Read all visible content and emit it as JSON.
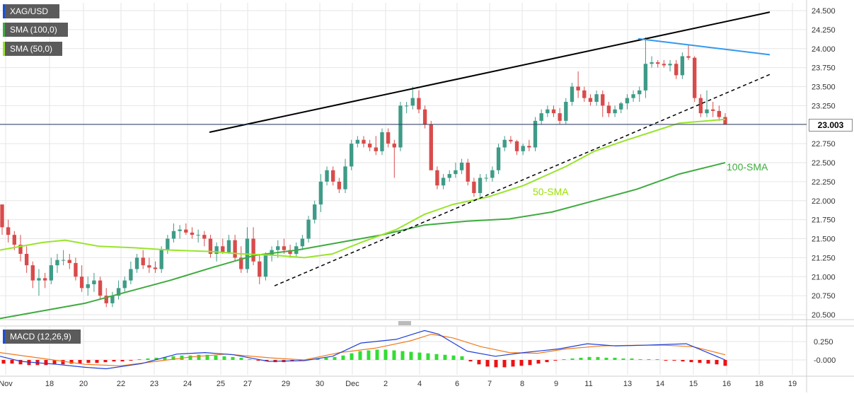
{
  "instrument": "XAG/USD",
  "legend": {
    "main": "XAG/USD",
    "sma100": "SMA (100,0)",
    "sma50": "SMA (50,0)",
    "macd": "MACD (12,26,9)"
  },
  "colors": {
    "background": "#ffffff",
    "grid": "#e6e6e6",
    "up": "#3e9b87",
    "down": "#d94b4b",
    "sma50": "#99e42b",
    "sma100": "#3fab3f",
    "resistance": "#000000",
    "blue_trendline": "#3399ee",
    "macd_line": "#1f3fd8",
    "signal_line": "#f07a1a",
    "hist_pos": "#33dd33",
    "hist_neg": "#ee1111"
  },
  "annotations": {
    "sma100": "100-SMA",
    "sma50": "50-SMA"
  },
  "current_price": "23.003",
  "chart_data": [
    {
      "type": "candlestick",
      "price_axis": {
        "ticks": [
          "24.500",
          "24.250",
          "24.000",
          "23.750",
          "23.500",
          "23.250",
          "23.000",
          "22.750",
          "22.500",
          "22.250",
          "22.000",
          "21.750",
          "21.500",
          "21.250",
          "21.000",
          "20.750",
          "20.500"
        ],
        "range": [
          20.45,
          24.55
        ]
      },
      "x_axis": {
        "labels": [
          "Nov",
          "18",
          "20",
          "22",
          "23",
          "24",
          "25",
          "27",
          "29",
          "30",
          "Dec",
          "2",
          "4",
          "6",
          "7",
          "8",
          "9",
          "11",
          "13",
          "14",
          "15",
          "16",
          "18",
          "19"
        ]
      },
      "candles": [
        [
          21.95,
          21.95,
          21.55,
          21.65
        ],
        [
          21.65,
          21.75,
          21.45,
          21.55
        ],
        [
          21.55,
          21.6,
          21.35,
          21.42
        ],
        [
          21.42,
          21.55,
          21.2,
          21.3
        ],
        [
          21.3,
          21.4,
          21.05,
          21.15
        ],
        [
          21.15,
          21.2,
          20.85,
          20.95
        ],
        [
          20.95,
          21.1,
          20.75,
          20.98
        ],
        [
          20.98,
          21.05,
          20.85,
          20.95
        ],
        [
          20.95,
          21.25,
          20.9,
          21.15
        ],
        [
          21.15,
          21.3,
          21.05,
          21.22
        ],
        [
          21.22,
          21.35,
          21.15,
          21.22
        ],
        [
          21.22,
          21.3,
          21.1,
          21.18
        ],
        [
          21.18,
          21.25,
          20.95,
          21.0
        ],
        [
          21.0,
          21.15,
          20.8,
          20.85
        ],
        [
          20.85,
          21.0,
          20.75,
          20.9
        ],
        [
          20.9,
          21.05,
          20.8,
          20.95
        ],
        [
          20.95,
          21.0,
          20.7,
          20.75
        ],
        [
          20.75,
          20.85,
          20.6,
          20.65
        ],
        [
          20.65,
          20.8,
          20.6,
          20.75
        ],
        [
          20.75,
          20.95,
          20.7,
          20.85
        ],
        [
          20.85,
          21.0,
          20.8,
          20.95
        ],
        [
          20.95,
          21.2,
          20.9,
          21.1
        ],
        [
          21.1,
          21.3,
          21.05,
          21.25
        ],
        [
          21.25,
          21.35,
          21.1,
          21.15
        ],
        [
          21.15,
          21.25,
          21.05,
          21.12
        ],
        [
          21.12,
          21.2,
          21.05,
          21.1
        ],
        [
          21.1,
          21.4,
          21.05,
          21.35
        ],
        [
          21.35,
          21.55,
          21.3,
          21.5
        ],
        [
          21.5,
          21.7,
          21.45,
          21.6
        ],
        [
          21.6,
          21.68,
          21.5,
          21.62
        ],
        [
          21.62,
          21.7,
          21.55,
          21.58
        ],
        [
          21.58,
          21.65,
          21.5,
          21.55
        ],
        [
          21.55,
          21.62,
          21.45,
          21.55
        ],
        [
          21.55,
          21.6,
          21.4,
          21.5
        ],
        [
          21.5,
          21.55,
          21.25,
          21.3
        ],
        [
          21.3,
          21.45,
          21.2,
          21.4
        ],
        [
          21.4,
          21.5,
          21.3,
          21.32
        ],
        [
          21.32,
          21.55,
          21.3,
          21.48
        ],
        [
          21.48,
          21.55,
          21.2,
          21.25
        ],
        [
          21.25,
          21.4,
          21.05,
          21.1
        ],
        [
          21.1,
          21.65,
          21.05,
          21.5
        ],
        [
          21.5,
          21.65,
          21.15,
          21.2
        ],
        [
          21.2,
          21.3,
          20.9,
          21.0
        ],
        [
          21.0,
          21.32,
          20.95,
          21.28
        ],
        [
          21.28,
          21.4,
          21.2,
          21.35
        ],
        [
          21.35,
          21.48,
          21.25,
          21.4
        ],
        [
          21.4,
          21.5,
          21.3,
          21.35
        ],
        [
          21.35,
          21.42,
          21.25,
          21.3
        ],
        [
          21.3,
          21.45,
          21.25,
          21.4
        ],
        [
          21.4,
          21.55,
          21.35,
          21.5
        ],
        [
          21.5,
          21.8,
          21.45,
          21.75
        ],
        [
          21.75,
          22.0,
          21.7,
          21.95
        ],
        [
          21.95,
          22.35,
          21.85,
          22.25
        ],
        [
          22.25,
          22.45,
          22.2,
          22.4
        ],
        [
          22.4,
          22.45,
          22.2,
          22.25
        ],
        [
          22.25,
          22.3,
          22.1,
          22.15
        ],
        [
          22.15,
          22.55,
          22.1,
          22.45
        ],
        [
          22.45,
          22.8,
          22.4,
          22.75
        ],
        [
          22.75,
          22.85,
          22.7,
          22.8
        ],
        [
          22.8,
          22.85,
          22.7,
          22.75
        ],
        [
          22.75,
          22.8,
          22.65,
          22.7
        ],
        [
          22.7,
          22.85,
          22.6,
          22.65
        ],
        [
          22.65,
          22.95,
          22.6,
          22.9
        ],
        [
          22.9,
          22.95,
          22.7,
          22.75
        ],
        [
          22.75,
          22.8,
          22.3,
          22.7
        ],
        [
          22.7,
          23.3,
          22.65,
          23.25
        ],
        [
          23.25,
          23.3,
          23.15,
          23.25
        ],
        [
          23.25,
          23.5,
          23.2,
          23.35
        ],
        [
          23.35,
          23.45,
          23.15,
          23.2
        ],
        [
          23.2,
          23.25,
          22.95,
          23.0
        ],
        [
          23.0,
          23.05,
          22.4,
          22.4
        ],
        [
          22.4,
          22.45,
          22.15,
          22.2
        ],
        [
          22.2,
          22.35,
          22.15,
          22.3
        ],
        [
          22.3,
          22.4,
          22.25,
          22.35
        ],
        [
          22.35,
          22.5,
          22.3,
          22.4
        ],
        [
          22.4,
          22.55,
          22.35,
          22.5
        ],
        [
          22.5,
          22.55,
          22.2,
          22.25
        ],
        [
          22.25,
          22.3,
          22.05,
          22.1
        ],
        [
          22.1,
          22.35,
          22.05,
          22.3
        ],
        [
          22.3,
          22.35,
          22.25,
          22.3
        ],
        [
          22.3,
          22.45,
          22.25,
          22.4
        ],
        [
          22.4,
          22.75,
          22.35,
          22.7
        ],
        [
          22.7,
          22.85,
          22.65,
          22.8
        ],
        [
          22.8,
          22.85,
          22.75,
          22.78
        ],
        [
          22.78,
          22.8,
          22.6,
          22.65
        ],
        [
          22.65,
          22.75,
          22.6,
          22.72
        ],
        [
          22.72,
          22.8,
          22.65,
          22.7
        ],
        [
          22.7,
          23.1,
          22.65,
          23.05
        ],
        [
          23.05,
          23.2,
          23.0,
          23.15
        ],
        [
          23.15,
          23.25,
          23.1,
          23.2
        ],
        [
          23.2,
          23.25,
          23.1,
          23.15
        ],
        [
          23.15,
          23.22,
          23.0,
          23.05
        ],
        [
          23.05,
          23.35,
          23.0,
          23.3
        ],
        [
          23.3,
          23.55,
          23.25,
          23.5
        ],
        [
          23.5,
          23.7,
          23.35,
          23.45
        ],
        [
          23.45,
          23.5,
          23.3,
          23.35
        ],
        [
          23.35,
          23.4,
          23.25,
          23.3
        ],
        [
          23.3,
          23.45,
          23.25,
          23.4
        ],
        [
          23.4,
          23.45,
          23.1,
          23.25
        ],
        [
          23.25,
          23.3,
          23.1,
          23.15
        ],
        [
          23.15,
          23.25,
          23.1,
          23.2
        ],
        [
          23.2,
          23.3,
          23.15,
          23.28
        ],
        [
          23.28,
          23.4,
          23.2,
          23.35
        ],
        [
          23.35,
          23.45,
          23.3,
          23.4
        ],
        [
          23.4,
          23.5,
          23.3,
          23.45
        ],
        [
          23.45,
          24.15,
          23.35,
          23.8
        ],
        [
          23.8,
          23.9,
          23.75,
          23.82
        ],
        [
          23.82,
          23.85,
          23.75,
          23.8
        ],
        [
          23.8,
          23.85,
          23.75,
          23.78
        ],
        [
          23.78,
          23.85,
          23.7,
          23.8
        ],
        [
          23.8,
          23.85,
          23.6,
          23.65
        ],
        [
          23.65,
          23.95,
          23.6,
          23.9
        ],
        [
          23.9,
          24.05,
          23.85,
          23.88
        ],
        [
          23.88,
          23.9,
          23.3,
          23.35
        ],
        [
          23.35,
          23.4,
          23.1,
          23.15
        ],
        [
          23.15,
          23.45,
          23.1,
          23.2
        ],
        [
          23.2,
          23.3,
          23.1,
          23.18
        ],
        [
          23.18,
          23.25,
          23.05,
          23.1
        ],
        [
          23.1,
          23.15,
          23.0,
          23.0
        ]
      ],
      "sma50": [
        [
          0,
          21.35
        ],
        [
          60,
          21.45
        ],
        [
          92,
          21.48
        ],
        [
          140,
          21.4
        ],
        [
          190,
          21.38
        ],
        [
          240,
          21.35
        ],
        [
          300,
          21.33
        ],
        [
          340,
          21.3
        ],
        [
          390,
          21.28
        ],
        [
          430,
          21.25
        ],
        [
          470,
          21.3
        ],
        [
          510,
          21.45
        ],
        [
          560,
          21.62
        ],
        [
          600,
          21.82
        ],
        [
          640,
          21.95
        ],
        [
          690,
          22.05
        ],
        [
          740,
          22.2
        ],
        [
          800,
          22.45
        ],
        [
          840,
          22.65
        ],
        [
          880,
          22.78
        ],
        [
          920,
          22.9
        ],
        [
          960,
          23.02
        ],
        [
          1000,
          23.05
        ],
        [
          1025,
          23.07
        ]
      ],
      "sma100": [
        [
          0,
          20.45
        ],
        [
          60,
          20.55
        ],
        [
          120,
          20.65
        ],
        [
          180,
          20.8
        ],
        [
          240,
          20.95
        ],
        [
          300,
          21.12
        ],
        [
          360,
          21.28
        ],
        [
          420,
          21.35
        ],
        [
          480,
          21.45
        ],
        [
          540,
          21.55
        ],
        [
          600,
          21.68
        ],
        [
          660,
          21.73
        ],
        [
          720,
          21.76
        ],
        [
          780,
          21.85
        ],
        [
          840,
          22.0
        ],
        [
          900,
          22.15
        ],
        [
          960,
          22.35
        ],
        [
          1025,
          22.5
        ]
      ],
      "resistance_line": [
        [
          296,
          22.9
        ],
        [
          1088,
          24.48
        ]
      ],
      "blue_trendline": [
        [
          902,
          24.13
        ],
        [
          1088,
          23.92
        ]
      ],
      "support_dashed": [
        [
          388,
          20.88
        ],
        [
          1088,
          23.66
        ]
      ]
    },
    {
      "type": "macd",
      "label": "MACD (12,26,9)",
      "y_ticks": [
        "0.250",
        "-0.000"
      ],
      "y_range": [
        -0.22,
        0.46
      ],
      "histogram": [
        -0.05,
        -0.05,
        -0.06,
        -0.07,
        -0.07,
        -0.07,
        -0.06,
        -0.06,
        -0.05,
        -0.05,
        -0.04,
        -0.04,
        -0.03,
        -0.02,
        -0.02,
        -0.01,
        0.01,
        0.02,
        0.03,
        0.04,
        0.05,
        0.06,
        0.06,
        0.07,
        0.07,
        0.06,
        0.05,
        0.04,
        0.03,
        0.01,
        -0.01,
        -0.02,
        -0.03,
        -0.03,
        -0.02,
        -0.01,
        0.01,
        0.02,
        0.03,
        0.04,
        0.06,
        0.09,
        0.12,
        0.13,
        0.14,
        0.14,
        0.13,
        0.12,
        0.11,
        0.1,
        0.09,
        0.08,
        0.07,
        0.06,
        0.05,
        -0.02,
        -0.06,
        -0.09,
        -0.1,
        -0.1,
        -0.09,
        -0.08,
        -0.07,
        -0.05,
        -0.03,
        -0.01,
        0.01,
        0.02,
        0.03,
        0.04,
        0.04,
        0.03,
        0.03,
        0.02,
        0.02,
        0.01,
        0.01,
        0.01,
        -0.01,
        -0.01,
        -0.02,
        -0.03,
        -0.04,
        -0.05,
        -0.06,
        -0.08
      ],
      "macd_line": [
        [
          0,
          0.05
        ],
        [
          30,
          -0.02
        ],
        [
          80,
          -0.06
        ],
        [
          120,
          -0.1
        ],
        [
          150,
          -0.12
        ],
        [
          200,
          -0.05
        ],
        [
          250,
          0.08
        ],
        [
          290,
          0.1
        ],
        [
          330,
          0.07
        ],
        [
          380,
          -0.02
        ],
        [
          430,
          -0.01
        ],
        [
          470,
          0.05
        ],
        [
          510,
          0.23
        ],
        [
          560,
          0.28
        ],
        [
          600,
          0.4
        ],
        [
          620,
          0.35
        ],
        [
          660,
          0.12
        ],
        [
          700,
          0.05
        ],
        [
          740,
          0.1
        ],
        [
          790,
          0.15
        ],
        [
          830,
          0.22
        ],
        [
          870,
          0.19
        ],
        [
          910,
          0.2
        ],
        [
          970,
          0.22
        ],
        [
          1000,
          0.1
        ],
        [
          1025,
          0.0
        ]
      ],
      "signal_line": [
        [
          0,
          0.1
        ],
        [
          60,
          0.02
        ],
        [
          120,
          -0.06
        ],
        [
          170,
          -0.08
        ],
        [
          220,
          -0.02
        ],
        [
          270,
          0.04
        ],
        [
          320,
          0.08
        ],
        [
          380,
          0.03
        ],
        [
          430,
          0.0
        ],
        [
          480,
          0.1
        ],
        [
          530,
          0.16
        ],
        [
          580,
          0.26
        ],
        [
          610,
          0.35
        ],
        [
          640,
          0.3
        ],
        [
          680,
          0.18
        ],
        [
          720,
          0.1
        ],
        [
          760,
          0.09
        ],
        [
          800,
          0.15
        ],
        [
          850,
          0.19
        ],
        [
          900,
          0.2
        ],
        [
          940,
          0.2
        ],
        [
          980,
          0.18
        ],
        [
          1025,
          0.07
        ]
      ]
    }
  ]
}
